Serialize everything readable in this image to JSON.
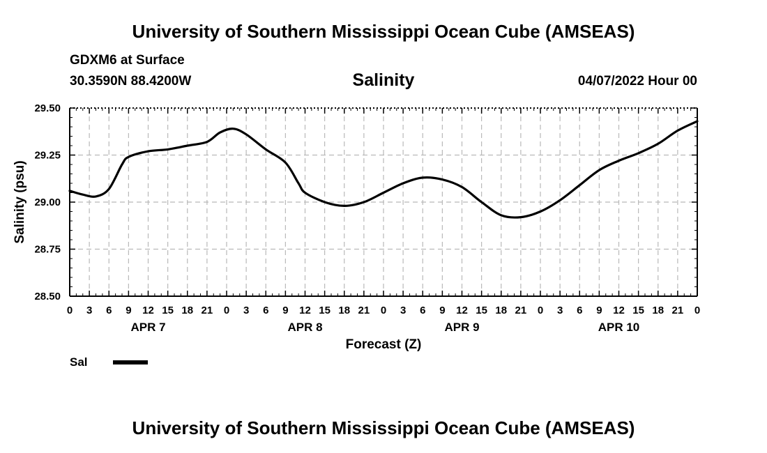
{
  "header": {
    "title": "University of Southern Mississippi Ocean Cube (AMSEAS)",
    "station": "GDXM6 at Surface",
    "coords": "30.3590N  88.4200W",
    "run_time": "04/07/2022 Hour 00"
  },
  "footer": {
    "title": "University of Southern Mississippi Ocean Cube (AMSEAS)"
  },
  "legend": {
    "label": "Sal",
    "color": "#000000"
  },
  "chart_data": {
    "type": "line",
    "title": "Salinity",
    "xlabel": "Forecast (Z)",
    "ylabel": "Salinity (psu)",
    "xlim": [
      0,
      96
    ],
    "ylim": [
      28.5,
      29.5
    ],
    "grid": true,
    "y_ticks": [
      29.5,
      29.25,
      29.0,
      28.75,
      28.5
    ],
    "y_tick_labels": [
      "29.50",
      "29.25",
      "29.00",
      "28.75",
      "28.50"
    ],
    "x_tick_labels": [
      "0",
      "3",
      "6",
      "9",
      "12",
      "15",
      "18",
      "21",
      "0",
      "3",
      "6",
      "9",
      "12",
      "15",
      "18",
      "21",
      "0",
      "3",
      "6",
      "9",
      "12",
      "15",
      "18",
      "21",
      "0",
      "3",
      "6",
      "9",
      "12",
      "15",
      "18",
      "21",
      "0"
    ],
    "day_labels": [
      {
        "label": "APR 7",
        "hour": 12
      },
      {
        "label": "APR 8",
        "hour": 36
      },
      {
        "label": "APR 9",
        "hour": 60
      },
      {
        "label": "APR 10",
        "hour": 84
      }
    ],
    "series": [
      {
        "name": "Sal",
        "x": [
          0,
          2,
          4,
          6,
          8,
          9,
          12,
          15,
          18,
          21,
          23,
          25,
          27,
          30,
          33,
          35,
          36,
          39,
          42,
          45,
          48,
          51,
          54,
          57,
          60,
          63,
          66,
          69,
          72,
          75,
          78,
          81,
          84,
          87,
          90,
          93,
          96
        ],
        "y": [
          29.06,
          29.04,
          29.03,
          29.07,
          29.2,
          29.24,
          29.27,
          29.28,
          29.3,
          29.32,
          29.37,
          29.39,
          29.36,
          29.28,
          29.21,
          29.1,
          29.05,
          29.0,
          28.98,
          29.0,
          29.05,
          29.1,
          29.13,
          29.12,
          29.08,
          29.0,
          28.93,
          28.92,
          28.95,
          29.01,
          29.09,
          29.17,
          29.22,
          29.26,
          29.31,
          29.38,
          29.43
        ]
      }
    ]
  }
}
